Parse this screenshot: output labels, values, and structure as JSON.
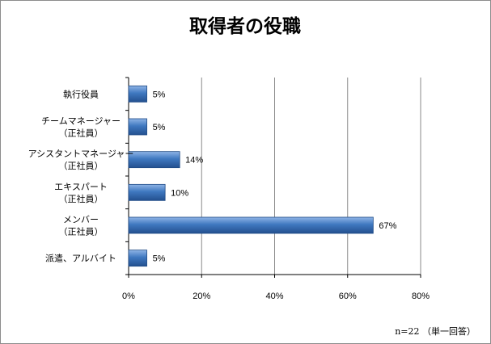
{
  "chart_data": {
    "type": "bar",
    "orientation": "horizontal",
    "title": "取得者の役職",
    "categories": [
      [
        "執行役員"
      ],
      [
        "チームマネージャー",
        "（正社員）"
      ],
      [
        "アシスタントマネージャー",
        "（正社員）"
      ],
      [
        "エキスパート",
        "（正社員）"
      ],
      [
        "メンバー",
        "（正社員）"
      ],
      [
        "派遣、アルバイト"
      ]
    ],
    "values": [
      5,
      5,
      14,
      10,
      67,
      5
    ],
    "value_labels": [
      "5%",
      "5%",
      "14%",
      "10%",
      "67%",
      "5%"
    ],
    "xlim": [
      0,
      80
    ],
    "x_ticks": [
      0,
      20,
      40,
      60,
      80
    ],
    "x_tick_labels": [
      "0%",
      "20%",
      "40%",
      "60%",
      "80%"
    ],
    "grid": "vertical",
    "bar_color": "#3f78c0"
  },
  "footnote": "n=22 （単一回答）"
}
